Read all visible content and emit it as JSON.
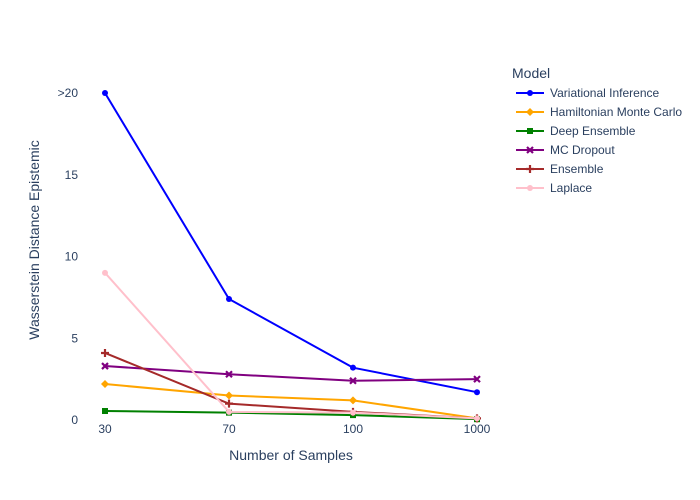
{
  "chart_data": {
    "type": "line",
    "categories": [
      "30",
      "70",
      "100",
      "1000"
    ],
    "xlabel": "Number of Samples",
    "ylabel": "Wasserstein Distance Epistemic",
    "ylim": [
      0,
      20
    ],
    "yticks": [
      {
        "value": 0,
        "label": "0"
      },
      {
        "value": 5,
        "label": "5"
      },
      {
        "value": 10,
        "label": "10"
      },
      {
        "value": 15,
        "label": "15"
      },
      {
        "value": 20,
        "label": ">20"
      }
    ],
    "grid": false,
    "legend": {
      "title": "Model",
      "placement": "right"
    },
    "series": [
      {
        "name": "Variational Inference",
        "color": "#0000ff",
        "marker": "circle",
        "values": [
          20,
          7.4,
          3.2,
          1.7
        ]
      },
      {
        "name": "Hamiltonian Monte Carlo",
        "color": "#ffa500",
        "marker": "diamond",
        "values": [
          2.2,
          1.5,
          1.2,
          0.1
        ]
      },
      {
        "name": "Deep Ensemble",
        "color": "#008000",
        "marker": "square",
        "values": [
          0.55,
          0.45,
          0.3,
          0.05
        ]
      },
      {
        "name": "MC Dropout",
        "color": "#800080",
        "marker": "x",
        "values": [
          3.3,
          2.8,
          2.4,
          2.5
        ]
      },
      {
        "name": "Ensemble",
        "color": "#a52a2a",
        "marker": "cross",
        "values": [
          4.1,
          1.0,
          0.5,
          0.1
        ]
      },
      {
        "name": "Laplace",
        "color": "#ffc0cb",
        "marker": "circle",
        "values": [
          9.0,
          0.5,
          0.45,
          0.1
        ]
      }
    ]
  }
}
